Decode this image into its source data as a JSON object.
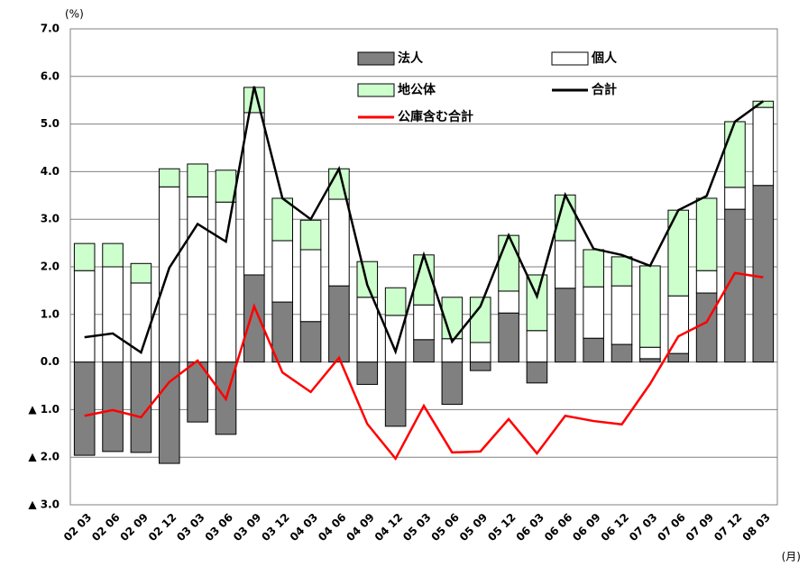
{
  "chart_data": {
    "type": "bar",
    "stacked": true,
    "y_unit": "(%)",
    "x_unit": "(月)",
    "categories": [
      "02 03",
      "02 06",
      "02 09",
      "02 12",
      "03 03",
      "03 06",
      "03 09",
      "03 12",
      "04 03",
      "04 06",
      "04 09",
      "04 12",
      "05 03",
      "05 06",
      "05 09",
      "05 12",
      "06 03",
      "06 06",
      "06 09",
      "06 12",
      "07 03",
      "07 06",
      "07 09",
      "07 12",
      "08 03"
    ],
    "series": [
      {
        "name": "法人",
        "type": "bar",
        "color": "#808080",
        "values": [
          -1.96,
          -1.88,
          -1.9,
          -2.13,
          -1.26,
          -1.52,
          1.83,
          1.26,
          0.85,
          1.6,
          -0.47,
          -1.35,
          0.47,
          -0.89,
          -0.18,
          1.03,
          -0.44,
          1.55,
          0.5,
          0.37,
          0.07,
          0.18,
          1.45,
          3.21,
          3.71
        ]
      },
      {
        "name": "個人",
        "type": "bar",
        "color": "#ffffff",
        "values": [
          1.92,
          2.0,
          1.66,
          3.68,
          3.47,
          3.36,
          3.41,
          1.29,
          1.51,
          1.82,
          1.36,
          0.98,
          0.73,
          0.49,
          0.41,
          0.46,
          0.66,
          1.0,
          1.08,
          1.23,
          0.24,
          1.21,
          0.47,
          0.46,
          1.64
        ]
      },
      {
        "name": "地公体",
        "type": "bar",
        "color": "#ccffcc",
        "values": [
          0.57,
          0.49,
          0.41,
          0.38,
          0.69,
          0.67,
          0.53,
          0.89,
          0.62,
          0.64,
          0.75,
          0.58,
          1.05,
          0.87,
          0.95,
          1.17,
          1.17,
          0.96,
          0.78,
          0.61,
          1.71,
          1.8,
          1.52,
          1.38,
          0.13
        ]
      },
      {
        "name": "合計",
        "type": "line",
        "color": "#000000",
        "values": [
          0.52,
          0.6,
          0.2,
          1.98,
          2.9,
          2.53,
          5.79,
          3.44,
          3.0,
          4.06,
          1.62,
          0.22,
          2.25,
          0.43,
          1.17,
          2.66,
          1.38,
          3.51,
          2.38,
          2.25,
          2.02,
          3.19,
          3.49,
          5.05,
          5.48
        ]
      },
      {
        "name": "公庫含む合計",
        "type": "line",
        "color": "#ff0000",
        "values": [
          -1.13,
          -1.01,
          -1.16,
          -0.42,
          0.03,
          -0.78,
          1.17,
          -0.22,
          -0.63,
          0.09,
          -1.3,
          -2.03,
          -0.92,
          -1.9,
          -1.88,
          -1.2,
          -1.92,
          -1.13,
          -1.24,
          -1.31,
          -0.46,
          0.54,
          0.84,
          1.87,
          1.78
        ]
      }
    ],
    "ylim": [
      -3,
      7
    ],
    "yticks": [
      {
        "value": 7,
        "label": "7.0"
      },
      {
        "value": 6,
        "label": "6.0"
      },
      {
        "value": 5,
        "label": "5.0"
      },
      {
        "value": 4,
        "label": "4.0"
      },
      {
        "value": 3,
        "label": "3.0"
      },
      {
        "value": 2,
        "label": "2.0"
      },
      {
        "value": 1,
        "label": "1.0"
      },
      {
        "value": 0,
        "label": "0.0"
      },
      {
        "value": -1,
        "label": "▲ 1.0"
      },
      {
        "value": -2,
        "label": "▲ 2.0"
      },
      {
        "value": -3,
        "label": "▲ 3.0"
      }
    ],
    "grid": true
  }
}
